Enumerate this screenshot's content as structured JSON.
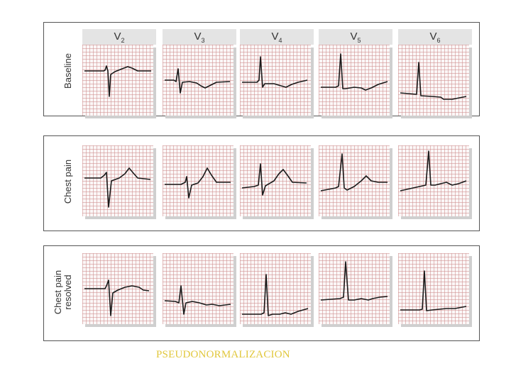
{
  "leads": [
    {
      "prefix": "V",
      "sub": "2"
    },
    {
      "prefix": "V",
      "sub": "3"
    },
    {
      "prefix": "V",
      "sub": "4"
    },
    {
      "prefix": "V",
      "sub": "5"
    },
    {
      "prefix": "V",
      "sub": "6"
    }
  ],
  "rows": [
    {
      "label_lines": [
        "Baseline"
      ]
    },
    {
      "label_lines": [
        "Chest pain"
      ]
    },
    {
      "label_lines": [
        "Chest pain",
        "resolved"
      ]
    }
  ],
  "footer_text": "PSEUDONORMALIZACION",
  "colors": {
    "trace": "#1a1a1a",
    "grid": "#cd8c8c",
    "footer": "#e1c73b"
  }
}
